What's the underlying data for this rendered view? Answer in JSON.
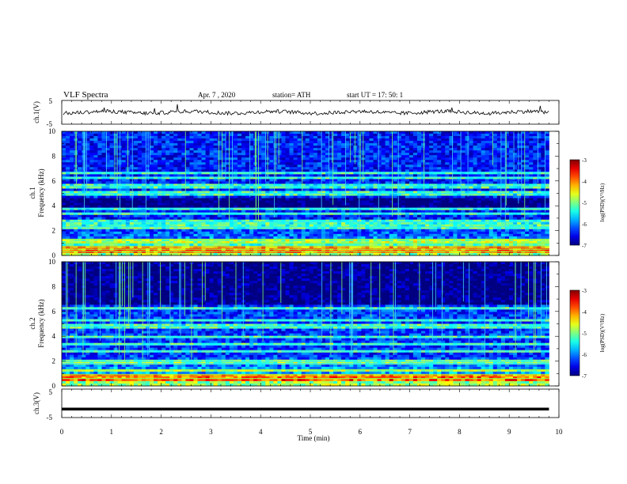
{
  "header": {
    "title": "VLF  Spectra",
    "date": "Apr. 7  , 2020",
    "station": "station= ATH",
    "start": "start  UT  =    17: 50: 1"
  },
  "chart_data": [
    {
      "type": "line",
      "name": "ch1-waveform",
      "ylabel": "ch.1(V)",
      "ylim": [
        -5,
        5
      ],
      "yticks": [
        "5",
        "-5"
      ],
      "xlim": [
        0,
        10
      ],
      "baseline": 0,
      "line_color": "#000000"
    },
    {
      "type": "heatmap",
      "name": "ch1-spectrogram",
      "ylabel": "ch.1\nFrequency  (kHz)",
      "ylabel_lines": [
        "ch.1",
        "Frequency  (kHz)"
      ],
      "ylim": [
        0,
        10
      ],
      "yticks": [
        "0",
        "2",
        "4",
        "6",
        "8",
        "10"
      ],
      "xlim": [
        0,
        10
      ],
      "data_end_min": 9.8,
      "colorbar": {
        "label": "log(PSD)(V²/Hz)",
        "ticks": [
          "-3",
          "-4",
          "-5",
          "-6",
          "-7"
        ],
        "range": [
          -7,
          -3
        ]
      },
      "background_level": -6.4,
      "persistent_lines_khz": [
        0.3,
        0.5,
        0.7,
        1.0,
        1.3,
        2.3,
        2.7,
        3.4,
        3.8,
        5.0,
        5.6,
        6.3,
        6.7
      ],
      "dark_band_khz": [
        3.8,
        4.6
      ]
    },
    {
      "type": "heatmap",
      "name": "ch2-spectrogram",
      "ylabel": "ch.2\nFrequency  (kHz)",
      "ylabel_lines": [
        "ch.2",
        "Frequency  (kHz)"
      ],
      "ylim": [
        0,
        10
      ],
      "yticks": [
        "0",
        "2",
        "4",
        "6",
        "8",
        "10"
      ],
      "xlim": [
        0,
        10
      ],
      "data_end_min": 9.8,
      "colorbar": {
        "label": "log(PSD)(V²/Hz)",
        "ticks": [
          "-3",
          "-4",
          "-5",
          "-6",
          "-7"
        ],
        "range": [
          -7,
          -3
        ]
      },
      "background_level": -6.3,
      "persistent_lines_khz": [
        0.6,
        0.9,
        1.3,
        1.8,
        2.0,
        2.8,
        3.3,
        3.9,
        4.8,
        5.3,
        6.2
      ],
      "dark_band_khz": [
        6.6,
        10
      ]
    },
    {
      "type": "line",
      "name": "ch3-waveform",
      "ylabel": "ch.3(V)",
      "ylim": [
        -5,
        5
      ],
      "yticks": [
        "5",
        "0",
        "-5"
      ],
      "xlim": [
        0,
        10
      ],
      "xticks": [
        "0",
        "1",
        "2",
        "3",
        "4",
        "5",
        "6",
        "7",
        "8",
        "9",
        "10"
      ],
      "xlabel": "Time  (min)",
      "constant_value": -2.0,
      "line_color": "#000000"
    }
  ]
}
